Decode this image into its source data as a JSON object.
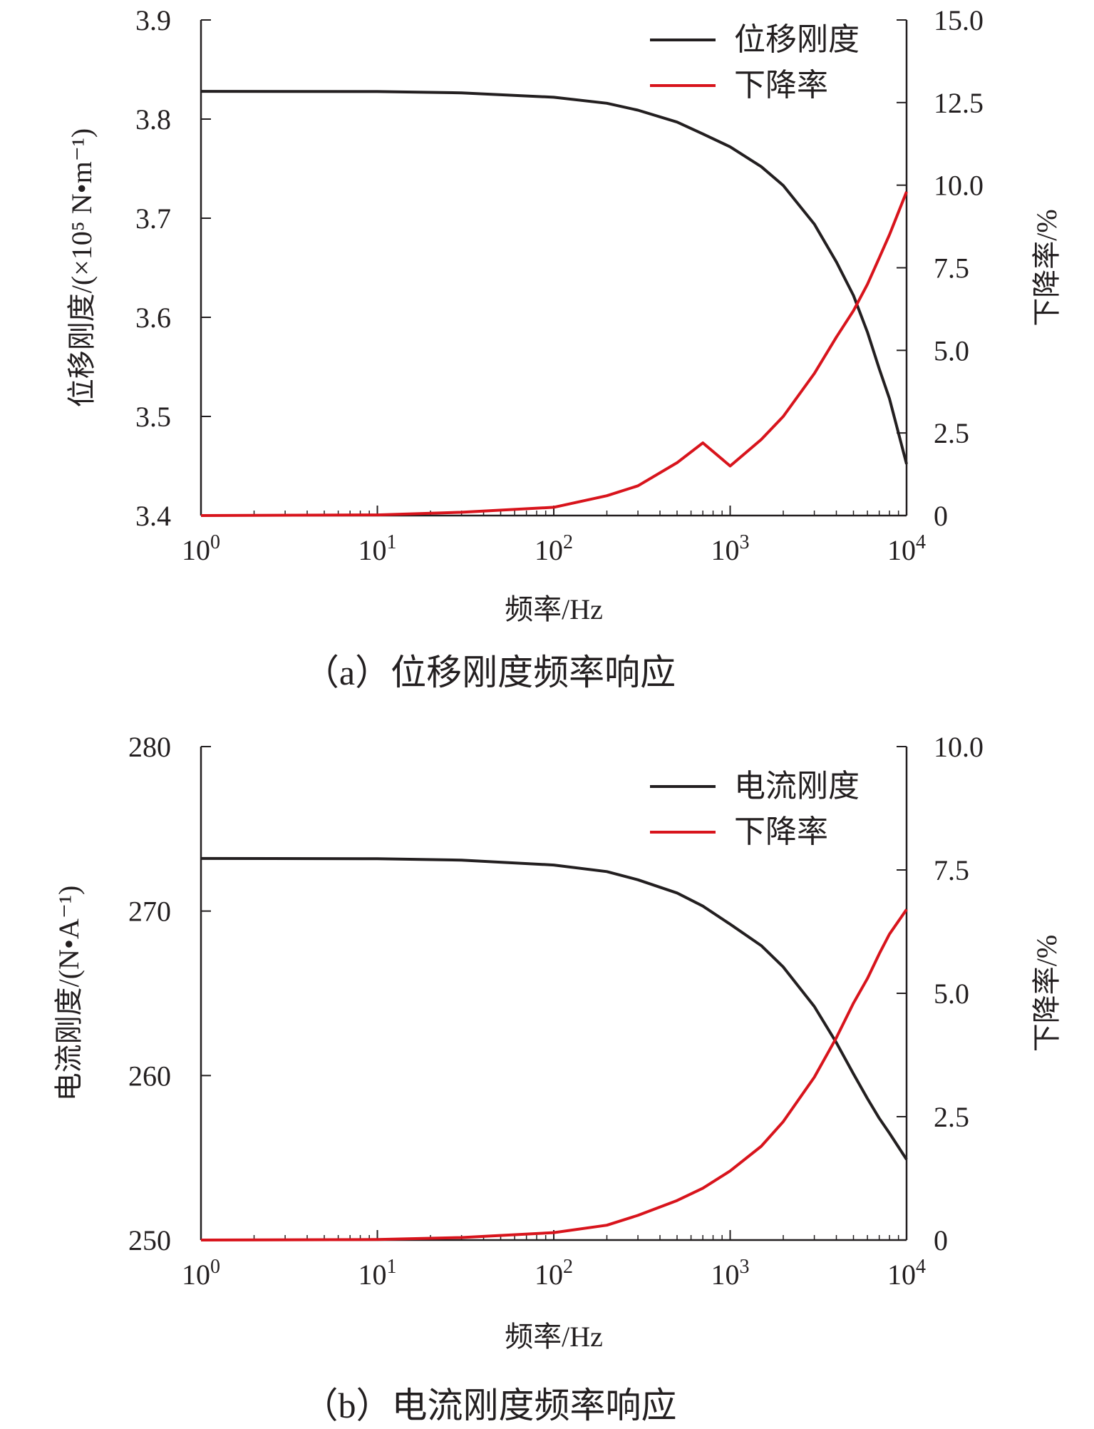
{
  "chart_data": [
    {
      "type": "line",
      "caption": "（a）位移刚度频率响应",
      "xlabel": "频率/Hz",
      "xscale": "log",
      "xlim": [
        1,
        10000
      ],
      "x_ticks": [
        1,
        10,
        100,
        1000,
        10000
      ],
      "x_tick_labels": [
        [
          "10",
          "0"
        ],
        [
          "10",
          "1"
        ],
        [
          "10",
          "2"
        ],
        [
          "10",
          "3"
        ],
        [
          "10",
          "4"
        ]
      ],
      "ylabel_left": "位移刚度/(×10⁵ N•m⁻¹)",
      "ylim_left": [
        3.4,
        3.9
      ],
      "y_ticks_left": [
        "3.4",
        "3.5",
        "3.6",
        "3.7",
        "3.8",
        "3.9"
      ],
      "ylabel_right": "下降率/%",
      "ylim_right": [
        0,
        15
      ],
      "y_ticks_right": [
        "0",
        "2.5",
        "5.0",
        "7.5",
        "10.0",
        "12.5",
        "15.0"
      ],
      "legend_position": "top-right",
      "grid": false,
      "series": [
        {
          "name": "位移刚度",
          "axis": "left",
          "color": "#231f20",
          "x": [
            1,
            10,
            30,
            100,
            200,
            300,
            500,
            700,
            1000,
            1500,
            2000,
            3000,
            4000,
            5000,
            6000,
            7000,
            8000,
            10000
          ],
          "y": [
            3.828,
            3.8278,
            3.8265,
            3.822,
            3.816,
            3.809,
            3.797,
            3.785,
            3.772,
            3.752,
            3.733,
            3.694,
            3.656,
            3.622,
            3.585,
            3.548,
            3.518,
            3.452
          ]
        },
        {
          "name": "下降率",
          "axis": "right",
          "color": "#d8141c",
          "x": [
            1,
            10,
            30,
            100,
            200,
            300,
            500,
            700,
            1000,
            1500,
            2000,
            3000,
            4000,
            5000,
            6000,
            7000,
            8000,
            10000
          ],
          "y": [
            0,
            0.02,
            0.1,
            0.25,
            0.6,
            0.9,
            1.6,
            2.2,
            1.5,
            2.3,
            3.0,
            4.3,
            5.4,
            6.2,
            7.0,
            7.8,
            8.5,
            9.8
          ]
        }
      ]
    },
    {
      "type": "line",
      "caption": "（b）电流刚度频率响应",
      "xlabel": "频率/Hz",
      "xscale": "log",
      "xlim": [
        1,
        10000
      ],
      "x_ticks": [
        1,
        10,
        100,
        1000,
        10000
      ],
      "x_tick_labels": [
        [
          "10",
          "0"
        ],
        [
          "10",
          "1"
        ],
        [
          "10",
          "2"
        ],
        [
          "10",
          "3"
        ],
        [
          "10",
          "4"
        ]
      ],
      "ylabel_left": "电流刚度/(N•A⁻¹)",
      "ylim_left": [
        250,
        280
      ],
      "y_ticks_left": [
        "250",
        "260",
        "270",
        "280"
      ],
      "ylabel_right": "下降率/%",
      "ylim_right": [
        0,
        10
      ],
      "y_ticks_right": [
        "0",
        "2.5",
        "5.0",
        "7.5",
        "10.0"
      ],
      "legend_position": "top-right",
      "grid": false,
      "series": [
        {
          "name": "电流刚度",
          "axis": "left",
          "color": "#231f20",
          "x": [
            1,
            10,
            30,
            100,
            200,
            300,
            500,
            700,
            1000,
            1500,
            2000,
            3000,
            4000,
            5000,
            6000,
            7000,
            8000,
            10000
          ],
          "y": [
            273.2,
            273.18,
            273.1,
            272.8,
            272.4,
            271.9,
            271.1,
            270.3,
            269.2,
            267.9,
            266.6,
            264.2,
            262.0,
            260.1,
            258.6,
            257.4,
            256.5,
            254.9
          ]
        },
        {
          "name": "下降率",
          "axis": "right",
          "color": "#d8141c",
          "x": [
            1,
            10,
            30,
            100,
            200,
            300,
            500,
            700,
            1000,
            1500,
            2000,
            3000,
            4000,
            5000,
            6000,
            7000,
            8000,
            10000
          ],
          "y": [
            0,
            0.01,
            0.05,
            0.15,
            0.3,
            0.5,
            0.8,
            1.05,
            1.4,
            1.9,
            2.4,
            3.3,
            4.1,
            4.8,
            5.3,
            5.8,
            6.2,
            6.7
          ]
        }
      ]
    }
  ]
}
